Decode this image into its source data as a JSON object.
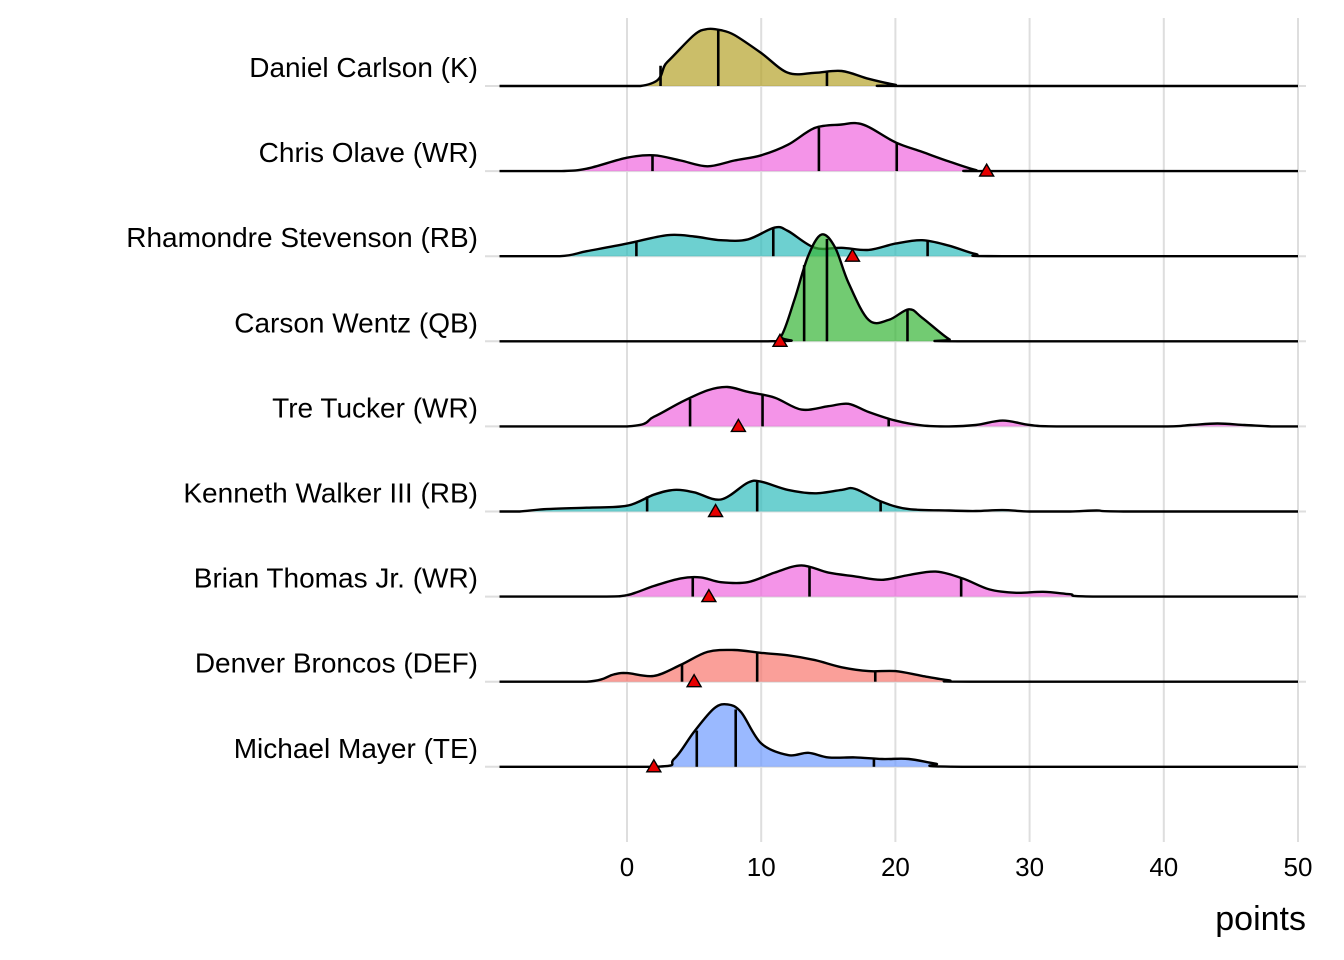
{
  "chart_data": {
    "type": "ridgeline",
    "xlabel": "points",
    "xlim": [
      -9.5,
      50.3
    ],
    "x_ticks": [
      "0",
      "10",
      "20",
      "30",
      "40",
      "50"
    ],
    "grid": true,
    "series": [
      {
        "name": "Daniel Carlson (K)",
        "position": "K",
        "color": "#b5a22a",
        "scale": 1.0,
        "density": [
          [
            -9.5,
            0
          ],
          [
            1,
            0
          ],
          [
            3,
            0.4
          ],
          [
            5,
            0.85
          ],
          [
            6,
            0.95
          ],
          [
            7,
            0.93
          ],
          [
            8,
            0.85
          ],
          [
            10,
            0.55
          ],
          [
            12,
            0.22
          ],
          [
            14,
            0.22
          ],
          [
            16,
            0.25
          ],
          [
            18,
            0.12
          ],
          [
            20,
            0.02
          ],
          [
            21,
            0
          ],
          [
            50,
            0
          ]
        ],
        "quantiles": [
          2.5,
          6.8,
          14.9
        ],
        "marker": null
      },
      {
        "name": "Chris Olave (WR)",
        "position": "WR",
        "color": "#f067de",
        "scale": 0.8,
        "density": [
          [
            -9.5,
            0
          ],
          [
            -5,
            0
          ],
          [
            -3,
            0.05
          ],
          [
            0,
            0.28
          ],
          [
            2,
            0.33
          ],
          [
            4,
            0.22
          ],
          [
            6,
            0.1
          ],
          [
            8,
            0.22
          ],
          [
            10,
            0.33
          ],
          [
            12,
            0.55
          ],
          [
            14,
            0.9
          ],
          [
            16,
            0.97
          ],
          [
            17,
            1.0
          ],
          [
            18,
            0.92
          ],
          [
            20,
            0.6
          ],
          [
            22,
            0.4
          ],
          [
            24,
            0.2
          ],
          [
            26,
            0.02
          ],
          [
            27,
            0
          ],
          [
            50,
            0
          ]
        ],
        "quantiles": [
          1.9,
          14.3,
          20.1
        ],
        "marker": 26.8
      },
      {
        "name": "Rhamondre Stevenson (RB)",
        "position": "RB",
        "color": "#2fbcbc",
        "scale": 0.7,
        "density": [
          [
            -9.5,
            0
          ],
          [
            -5,
            0
          ],
          [
            -3,
            0.12
          ],
          [
            0,
            0.3
          ],
          [
            3,
            0.5
          ],
          [
            5,
            0.47
          ],
          [
            7,
            0.38
          ],
          [
            9,
            0.4
          ],
          [
            11,
            0.68
          ],
          [
            12,
            0.6
          ],
          [
            14,
            0.2
          ],
          [
            16,
            0.2
          ],
          [
            18,
            0.15
          ],
          [
            20,
            0.3
          ],
          [
            22,
            0.38
          ],
          [
            24,
            0.25
          ],
          [
            26,
            0.05
          ],
          [
            28,
            0
          ],
          [
            50,
            0
          ]
        ],
        "quantiles": [
          0.7,
          10.9,
          22.4
        ],
        "marker": 16.8
      },
      {
        "name": "Carson Wentz (QB)",
        "position": "QB",
        "color": "#36b536",
        "scale": 1.78,
        "density": [
          [
            -9.5,
            0
          ],
          [
            10.5,
            0
          ],
          [
            11.5,
            0.05
          ],
          [
            12.5,
            0.4
          ],
          [
            13.5,
            0.8
          ],
          [
            14.5,
            1.0
          ],
          [
            15.5,
            0.88
          ],
          [
            16.5,
            0.55
          ],
          [
            18,
            0.2
          ],
          [
            19.5,
            0.2
          ],
          [
            21,
            0.3
          ],
          [
            22,
            0.22
          ],
          [
            24,
            0.02
          ],
          [
            25,
            0
          ],
          [
            50,
            0
          ]
        ],
        "quantiles": [
          13.2,
          14.9,
          20.9
        ],
        "marker": 11.4
      },
      {
        "name": "Tre Tucker (WR)",
        "position": "WR",
        "color": "#f067de",
        "scale": 0.8,
        "density": [
          [
            -9.5,
            0
          ],
          [
            0,
            0
          ],
          [
            2,
            0.2
          ],
          [
            4,
            0.5
          ],
          [
            6,
            0.75
          ],
          [
            7.5,
            0.82
          ],
          [
            9,
            0.72
          ],
          [
            11,
            0.6
          ],
          [
            13,
            0.35
          ],
          [
            15,
            0.42
          ],
          [
            16.5,
            0.47
          ],
          [
            18,
            0.3
          ],
          [
            20,
            0.12
          ],
          [
            22,
            0.02
          ],
          [
            24,
            0
          ],
          [
            26,
            0.03
          ],
          [
            28,
            0.12
          ],
          [
            30,
            0.03
          ],
          [
            32,
            0
          ],
          [
            40,
            0
          ],
          [
            42,
            0.03
          ],
          [
            44,
            0.06
          ],
          [
            46,
            0.03
          ],
          [
            48,
            0
          ],
          [
            50,
            0
          ]
        ],
        "quantiles": [
          4.7,
          10.1,
          19.5
        ],
        "marker": 8.3
      },
      {
        "name": "Kenneth Walker III (RB)",
        "position": "RB",
        "color": "#2fbcbc",
        "scale": 0.8,
        "density": [
          [
            -9.5,
            0
          ],
          [
            -8,
            0
          ],
          [
            -6,
            0.05
          ],
          [
            -3,
            0.08
          ],
          [
            0,
            0.12
          ],
          [
            2,
            0.35
          ],
          [
            3.5,
            0.45
          ],
          [
            5,
            0.4
          ],
          [
            7,
            0.25
          ],
          [
            9,
            0.6
          ],
          [
            10,
            0.62
          ],
          [
            12,
            0.45
          ],
          [
            14,
            0.38
          ],
          [
            16,
            0.45
          ],
          [
            17,
            0.47
          ],
          [
            19,
            0.2
          ],
          [
            21,
            0.05
          ],
          [
            24,
            0.02
          ],
          [
            26,
            0.01
          ],
          [
            28,
            0.03
          ],
          [
            30,
            0
          ],
          [
            33,
            0
          ],
          [
            35,
            0.02
          ],
          [
            37,
            0
          ],
          [
            50,
            0
          ]
        ],
        "quantiles": [
          1.5,
          9.7,
          18.9
        ],
        "marker": 6.6
      },
      {
        "name": "Brian Thomas Jr. (WR)",
        "position": "WR",
        "color": "#f067de",
        "scale": 0.8,
        "density": [
          [
            -9.5,
            0
          ],
          [
            -2,
            0
          ],
          [
            0,
            0.03
          ],
          [
            2,
            0.22
          ],
          [
            4,
            0.38
          ],
          [
            5.5,
            0.4
          ],
          [
            7,
            0.3
          ],
          [
            9,
            0.3
          ],
          [
            11,
            0.5
          ],
          [
            13,
            0.65
          ],
          [
            15,
            0.5
          ],
          [
            17,
            0.42
          ],
          [
            19,
            0.35
          ],
          [
            21,
            0.45
          ],
          [
            23,
            0.52
          ],
          [
            25,
            0.38
          ],
          [
            27,
            0.15
          ],
          [
            29,
            0.08
          ],
          [
            31,
            0.1
          ],
          [
            33,
            0.05
          ],
          [
            35,
            0
          ],
          [
            50,
            0
          ]
        ],
        "quantiles": [
          4.9,
          13.6,
          24.9
        ],
        "marker": 6.1
      },
      {
        "name": "Denver Broncos (DEF)",
        "position": "DEF",
        "color": "#f8766d",
        "scale": 0.8,
        "density": [
          [
            -9.5,
            0
          ],
          [
            -3,
            0
          ],
          [
            -1,
            0.15
          ],
          [
            0,
            0.18
          ],
          [
            2,
            0.12
          ],
          [
            4,
            0.35
          ],
          [
            6,
            0.62
          ],
          [
            8,
            0.66
          ],
          [
            10,
            0.6
          ],
          [
            12,
            0.55
          ],
          [
            14,
            0.45
          ],
          [
            16,
            0.3
          ],
          [
            18,
            0.22
          ],
          [
            20,
            0.22
          ],
          [
            22,
            0.12
          ],
          [
            24,
            0.03
          ],
          [
            26,
            0
          ],
          [
            50,
            0
          ]
        ],
        "quantiles": [
          4.1,
          9.7,
          18.5
        ],
        "marker": 5.0
      },
      {
        "name": "Michael Mayer (TE)",
        "position": "TE",
        "color": "#6f9bff",
        "scale": 1.3,
        "density": [
          [
            -9.5,
            0
          ],
          [
            2,
            0
          ],
          [
            3.5,
            0.1
          ],
          [
            5,
            0.45
          ],
          [
            6.5,
            0.75
          ],
          [
            7.5,
            0.8
          ],
          [
            8.5,
            0.7
          ],
          [
            10,
            0.3
          ],
          [
            12,
            0.15
          ],
          [
            13.5,
            0.18
          ],
          [
            15,
            0.12
          ],
          [
            17,
            0.12
          ],
          [
            19,
            0.1
          ],
          [
            21,
            0.1
          ],
          [
            23,
            0.04
          ],
          [
            25,
            0
          ],
          [
            50,
            0
          ]
        ],
        "quantiles": [
          5.2,
          8.1,
          18.4
        ],
        "marker": 2.0
      }
    ]
  }
}
